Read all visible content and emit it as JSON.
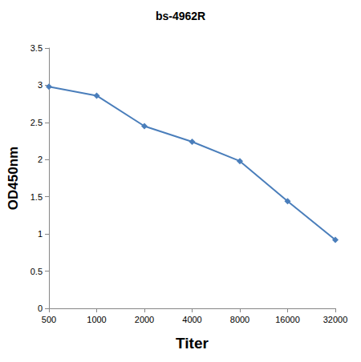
{
  "chart_data": {
    "type": "line",
    "title": "bs-4962R",
    "x_label": "Titer",
    "y_label": "OD450nm",
    "categories": [
      "500",
      "1000",
      "2000",
      "4000",
      "8000",
      "16000",
      "32000"
    ],
    "values": [
      2.98,
      2.86,
      2.45,
      2.24,
      1.98,
      1.44,
      0.92
    ],
    "color": "#4a7ebb",
    "marker": "diamond",
    "ylim": [
      0,
      3.5
    ],
    "yticks": [
      0,
      0.5,
      1,
      1.5,
      2,
      2.5,
      3,
      3.5
    ],
    "grid": false
  }
}
